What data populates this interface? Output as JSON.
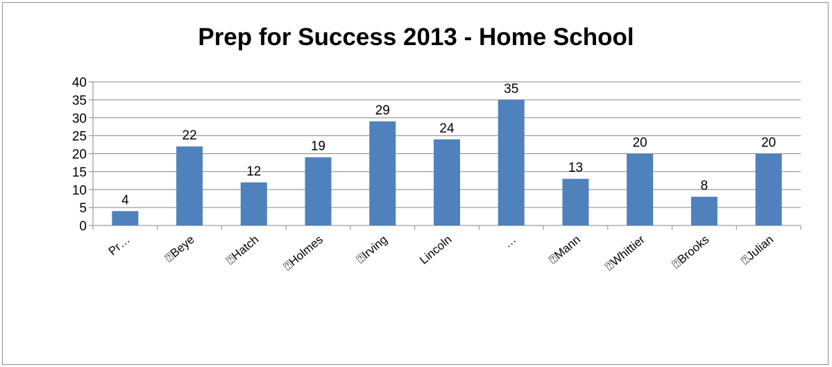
{
  "chart_data": {
    "type": "bar",
    "title": "Prep for Success 2013 - Home School",
    "xlabel": "",
    "ylabel": "",
    "ylim": [
      0,
      40
    ],
    "yticks": [
      0,
      5,
      10,
      15,
      20,
      25,
      30,
      35,
      40
    ],
    "grid": true,
    "legend": "none",
    "bar_color": "#4f81bd",
    "categories": [
      "Pr…",
      "⍰Beye",
      "⍰Hatch",
      "⍰Holmes",
      "⍰Irving",
      "Lincoln",
      "…",
      "⍰Mann",
      "⍰Whittier",
      "⍰Brooks",
      "⍰Julian"
    ],
    "series": [
      {
        "values": [
          4,
          22,
          12,
          19,
          29,
          24,
          35,
          13,
          20,
          8,
          20
        ]
      }
    ]
  }
}
